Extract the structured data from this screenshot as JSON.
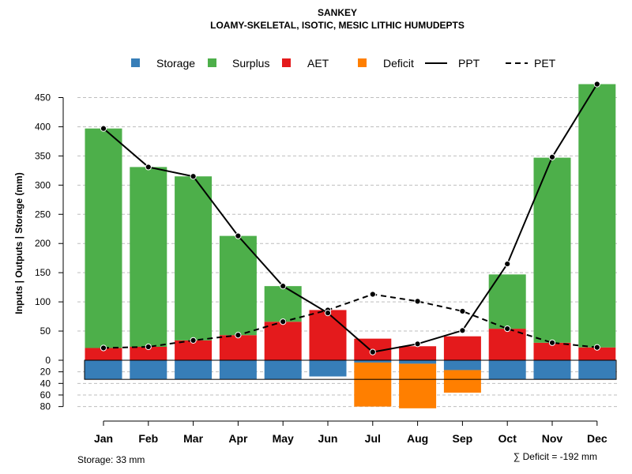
{
  "chart_data": {
    "type": "bar",
    "title": "SANKEY",
    "subtitle": "LOAMY-SKELETAL, ISOTIC, MESIC LITHIC HUMUDEPTS",
    "ylabel": "Inputs | Outputs | Storage    (mm)",
    "categories": [
      "Jan",
      "Feb",
      "Mar",
      "Apr",
      "May",
      "Jun",
      "Jul",
      "Aug",
      "Sep",
      "Oct",
      "Nov",
      "Dec"
    ],
    "ylim": [
      -80,
      475
    ],
    "yticks_top": [
      0,
      50,
      100,
      150,
      200,
      250,
      300,
      350,
      400,
      450
    ],
    "yticks_bottom": [
      20,
      40,
      60,
      80
    ],
    "legend": [
      {
        "key": "storage",
        "label": "Storage",
        "kind": "box"
      },
      {
        "key": "surplus",
        "label": "Surplus",
        "kind": "box"
      },
      {
        "key": "aet",
        "label": "AET",
        "kind": "box"
      },
      {
        "key": "deficit",
        "label": "Deficit",
        "kind": "box"
      },
      {
        "key": "ppt",
        "label": "PPT",
        "kind": "solid"
      },
      {
        "key": "pet",
        "label": "PET",
        "kind": "dashed"
      }
    ],
    "colors": {
      "storage": "#377EB8",
      "surplus": "#4DAF4A",
      "aet": "#E41A1C",
      "deficit": "#FF7F00",
      "line": "#000000",
      "grid": "#BEBEBE"
    },
    "series": [
      {
        "name": "AET",
        "values": [
          21,
          23,
          34,
          43,
          66,
          86,
          37,
          24,
          41,
          54,
          30,
          22
        ]
      },
      {
        "name": "Surplus",
        "values": [
          376,
          308,
          281,
          170,
          61,
          0,
          0,
          0,
          0,
          93,
          317,
          451
        ]
      },
      {
        "name": "PPT",
        "values": [
          397,
          331,
          315,
          213,
          127,
          81,
          14,
          28,
          51,
          165,
          348,
          473
        ]
      },
      {
        "name": "PET",
        "values": [
          21,
          23,
          34,
          43,
          66,
          86,
          113,
          101,
          84,
          54,
          30,
          22
        ]
      },
      {
        "name": "Storage",
        "values": [
          33,
          33,
          33,
          33,
          33,
          28,
          4,
          6,
          17,
          33,
          33,
          33
        ]
      },
      {
        "name": "Deficit",
        "values": [
          0,
          0,
          0,
          0,
          0,
          0,
          76,
          77,
          39,
          0,
          0,
          0
        ]
      }
    ],
    "storage_capacity": 33,
    "storage_note": "Storage: 33 mm",
    "deficit_note": "∑ Deficit = -192 mm"
  }
}
